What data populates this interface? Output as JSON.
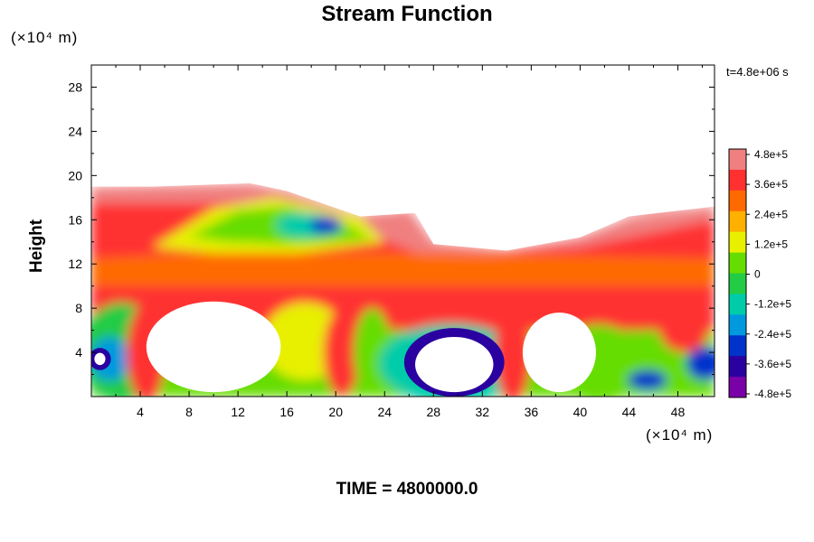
{
  "chart_data": {
    "type": "heatmap",
    "title": "Stream Function",
    "ylabel": "Height",
    "x_unit": "(×10⁴ m)",
    "y_unit": "(×10⁴ m)",
    "x_ticks": [
      "4",
      "8",
      "12",
      "16",
      "20",
      "24",
      "28",
      "32",
      "36",
      "40",
      "44",
      "48"
    ],
    "y_ticks": [
      "4",
      "8",
      "12",
      "16",
      "20",
      "24",
      "28"
    ],
    "xlim": [
      0,
      51
    ],
    "ylim": [
      0,
      30
    ],
    "time_stamp": "t=4.8e+06 s",
    "colorbar": {
      "labels": [
        "4.8e+5",
        "3.6e+5",
        "2.4e+5",
        "1.2e+5",
        "0",
        "-1.2e+5",
        "-2.4e+5",
        "-3.6e+5",
        "-4.8e+5"
      ],
      "range": [
        -480000,
        480000
      ],
      "colors": [
        "#f08080",
        "#ff3030",
        "#ff6a00",
        "#ffb000",
        "#e8f000",
        "#66dd00",
        "#22cc44",
        "#00ccaa",
        "#0099dd",
        "#0033cc",
        "#2a00a0",
        "#7a00a8"
      ]
    },
    "regions": [
      {
        "name": "negative-core-left",
        "x": 0.6,
        "y": 3.4
      },
      {
        "name": "negative-core-middle",
        "x": 29.5,
        "y": 2.8
      },
      {
        "name": "negative-core-right",
        "x": 50,
        "y": 3
      },
      {
        "name": "negative-core-upper",
        "x": 19,
        "y": 15.5
      },
      {
        "name": "negative-core-lower-right",
        "x": 45.5,
        "y": 1.5
      }
    ]
  },
  "caption": {
    "time_label": "TIME = 4800000.0"
  }
}
